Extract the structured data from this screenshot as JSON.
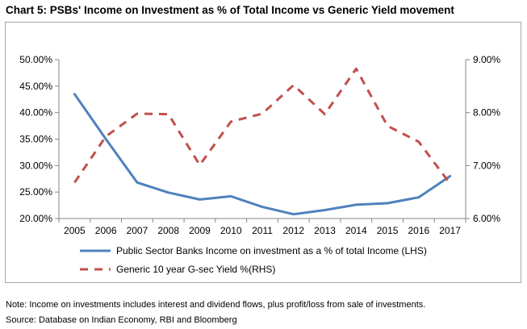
{
  "title": "Chart 5: PSBs' Income on Investment as % of Total Income vs Generic Yield movement",
  "note": "Note: Income on investments includes interest and dividend flows, plus profit/loss from sale of investments.",
  "source": "Source: Database on Indian Economy, RBI and Bloomberg",
  "chart_data": {
    "type": "line",
    "title": "Chart 5: PSBs' Income on Investment as % of Total Income vs Generic Yield movement",
    "categories": [
      "2005",
      "2006",
      "2007",
      "2008",
      "2009",
      "2010",
      "2011",
      "2012",
      "2013",
      "2014",
      "2015",
      "2016",
      "2017"
    ],
    "y_left": {
      "ylim": [
        20,
        50
      ],
      "ticks": [
        20,
        25,
        30,
        35,
        40,
        45,
        50
      ],
      "tick_labels": [
        "20.00%",
        "25.00%",
        "30.00%",
        "35.00%",
        "40.00%",
        "45.00%",
        "50.00%"
      ]
    },
    "y_right": {
      "ylim": [
        6,
        9
      ],
      "ticks": [
        6,
        7,
        8,
        9
      ],
      "tick_labels": [
        "6.00%",
        "7.00%",
        "8.00%",
        "9.00%"
      ]
    },
    "series": [
      {
        "name": "Public Sector Banks Income on investment as a % of total Income (LHS)",
        "axis": "left",
        "style": "solid",
        "color": "#4f81bd",
        "values": [
          43.5,
          35.0,
          26.8,
          24.9,
          23.6,
          24.2,
          22.2,
          20.8,
          21.6,
          22.6,
          22.9,
          24.0,
          28.0
        ]
      },
      {
        "name": "Generic 10 year G-sec  Yield %(RHS)",
        "axis": "right",
        "style": "dashed",
        "color": "#c0504d",
        "values": [
          6.68,
          7.55,
          7.98,
          7.97,
          7.01,
          7.83,
          7.98,
          8.52,
          7.97,
          8.83,
          7.75,
          7.45,
          6.66
        ]
      }
    ],
    "legend_position": "bottom",
    "grid": false
  }
}
